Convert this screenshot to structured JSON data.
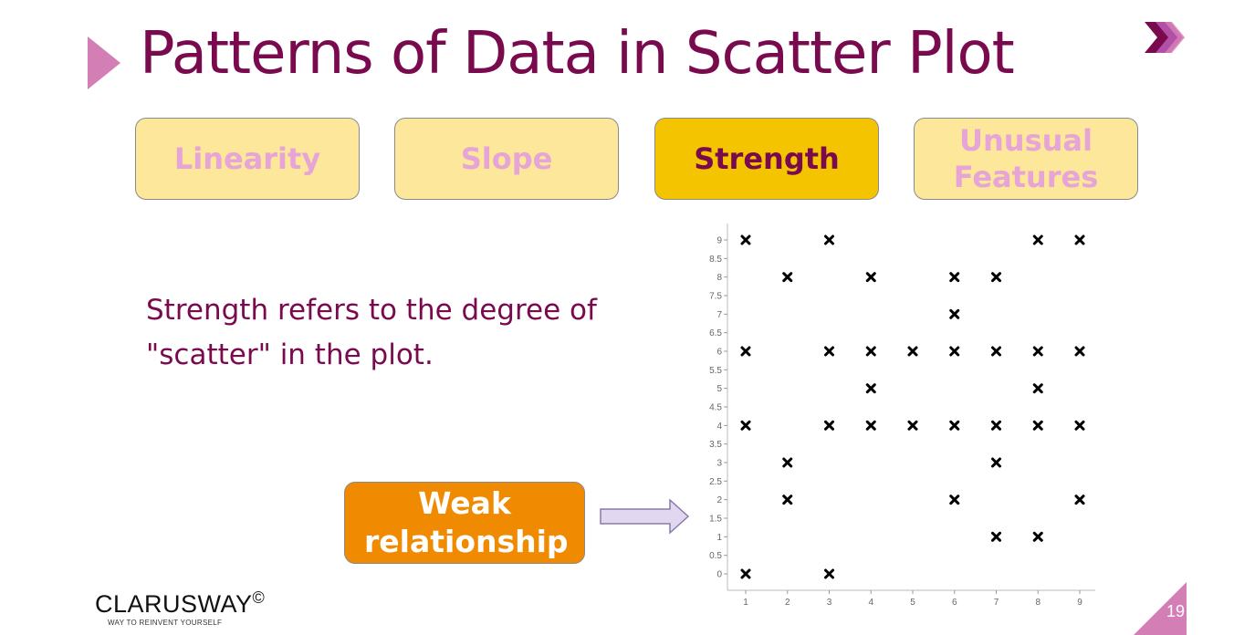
{
  "slide": {
    "title": "Patterns of Data in Scatter Plot",
    "page_number": "19"
  },
  "tabs": [
    {
      "label": "Linearity",
      "active": false
    },
    {
      "label": "Slope",
      "active": false
    },
    {
      "label": "Strength",
      "active": true
    },
    {
      "label": "Unusual Features",
      "active": false
    }
  ],
  "description": "Strength refers to the degree of \"scatter\" in the plot.",
  "callout": {
    "label": "Weak relationship"
  },
  "brand": {
    "name": "CLARUSWAY",
    "mark": "©",
    "tagline": "WAY TO REINVENT YOURSELF"
  },
  "colors": {
    "title": "#7a0a4e",
    "tab_inactive_bg": "#fce79a",
    "tab_inactive_text": "#e6a5d6",
    "tab_active_bg": "#f5c400",
    "callout_bg": "#f08a00",
    "accent": "#d37fb6"
  },
  "chart_data": {
    "type": "scatter",
    "marker": "x",
    "xlim": [
      1,
      9
    ],
    "ylim": [
      0,
      9
    ],
    "x_ticks": [
      "1",
      "2",
      "3",
      "4",
      "5",
      "6",
      "7",
      "8",
      "9"
    ],
    "y_ticks": [
      "0",
      "0.5",
      "1",
      "1.5",
      "2",
      "2.5",
      "3",
      "3.5",
      "4",
      "4.5",
      "5",
      "5.5",
      "6",
      "6.5",
      "7",
      "7.5",
      "8",
      "8.5",
      "9"
    ],
    "grid": false,
    "points": [
      [
        1,
        9
      ],
      [
        3,
        9
      ],
      [
        8,
        9
      ],
      [
        9,
        9
      ],
      [
        2,
        8
      ],
      [
        4,
        8
      ],
      [
        6,
        8
      ],
      [
        7,
        8
      ],
      [
        6,
        7
      ],
      [
        1,
        6
      ],
      [
        3,
        6
      ],
      [
        4,
        6
      ],
      [
        5,
        6
      ],
      [
        6,
        6
      ],
      [
        7,
        6
      ],
      [
        8,
        6
      ],
      [
        9,
        6
      ],
      [
        4,
        5
      ],
      [
        8,
        5
      ],
      [
        1,
        4
      ],
      [
        3,
        4
      ],
      [
        4,
        4
      ],
      [
        5,
        4
      ],
      [
        6,
        4
      ],
      [
        7,
        4
      ],
      [
        8,
        4
      ],
      [
        9,
        4
      ],
      [
        2,
        3
      ],
      [
        7,
        3
      ],
      [
        2,
        2
      ],
      [
        6,
        2
      ],
      [
        9,
        2
      ],
      [
        7,
        1
      ],
      [
        8,
        1
      ],
      [
        1,
        0
      ],
      [
        3,
        0
      ]
    ]
  }
}
